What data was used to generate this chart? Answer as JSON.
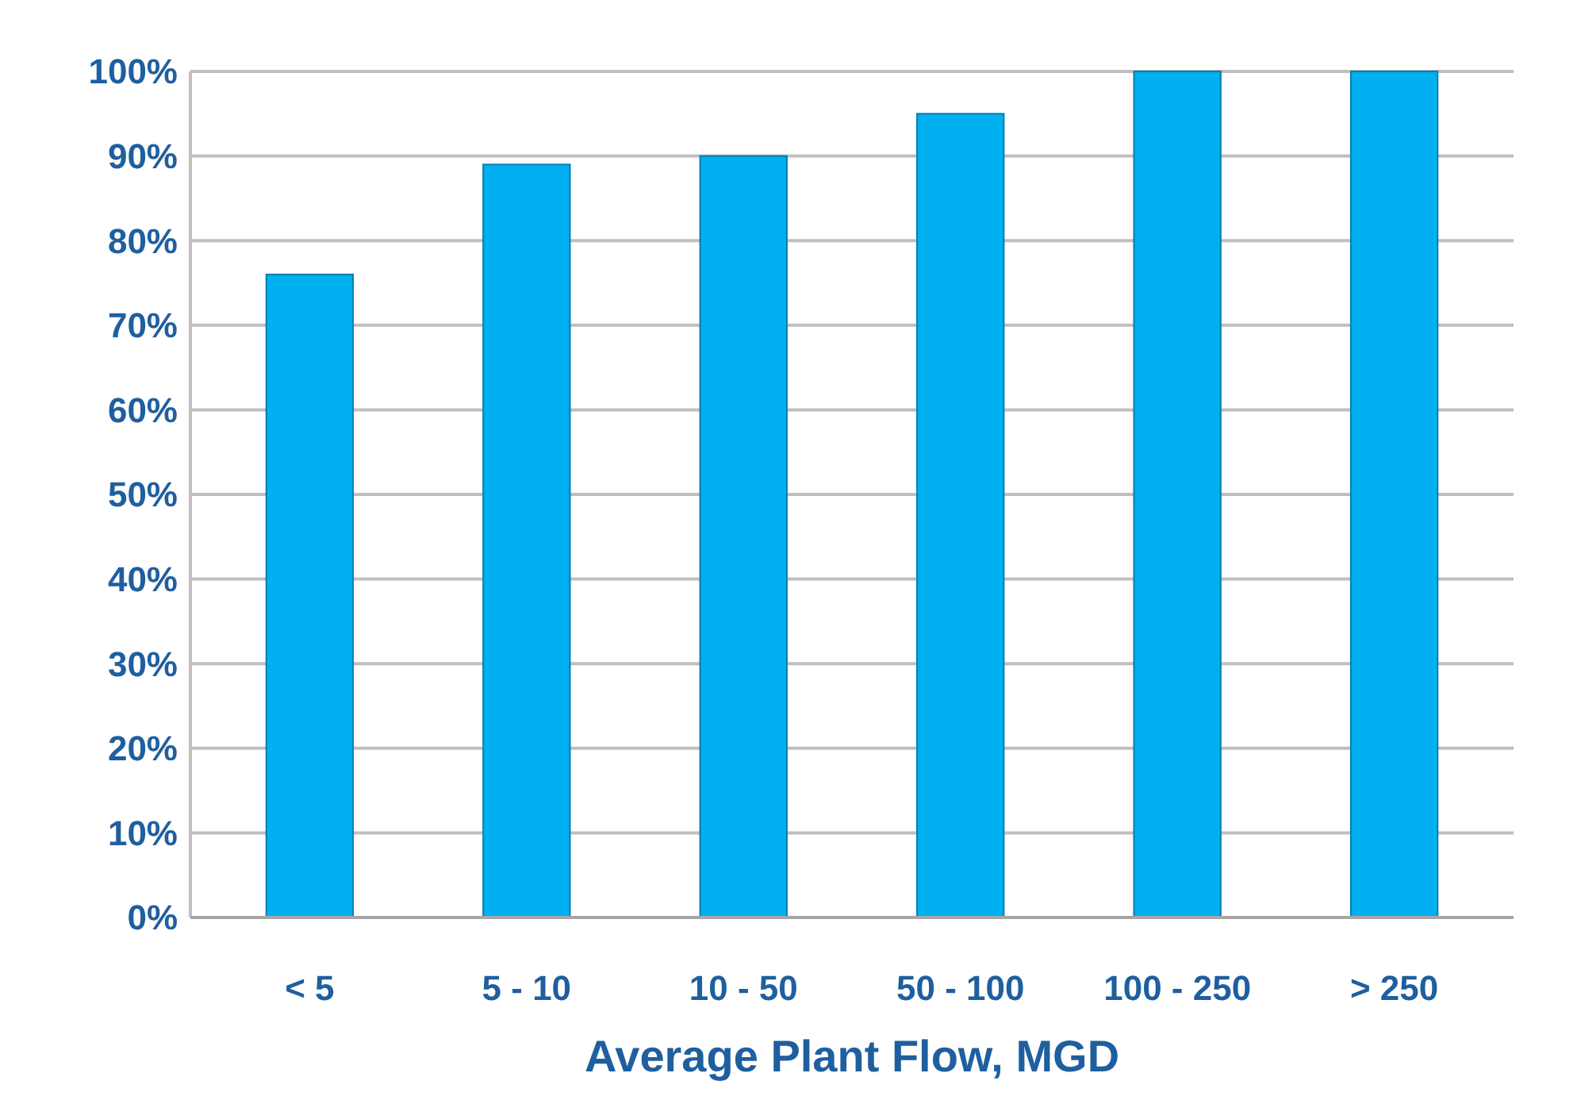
{
  "chart_data": {
    "type": "bar",
    "xlabel": "Average Plant Flow, MGD",
    "categories": [
      "< 5",
      "5 - 10",
      "10 - 50",
      "50 - 100",
      "100 - 250",
      "> 250"
    ],
    "values": [
      76,
      89,
      90,
      95,
      100,
      100
    ],
    "color": "#00b0f0",
    "ylim": [
      0,
      100
    ],
    "yticks": [
      {
        "value": 0,
        "label": "0%"
      },
      {
        "value": 10,
        "label": "10%"
      },
      {
        "value": 20,
        "label": "20%"
      },
      {
        "value": 30,
        "label": "30%"
      },
      {
        "value": 40,
        "label": "40%"
      },
      {
        "value": 50,
        "label": "50%"
      },
      {
        "value": 60,
        "label": "60%"
      },
      {
        "value": 70,
        "label": "70%"
      },
      {
        "value": 80,
        "label": "80%"
      },
      {
        "value": 90,
        "label": "90%"
      },
      {
        "value": 100,
        "label": "100%"
      }
    ],
    "grid": "y"
  }
}
